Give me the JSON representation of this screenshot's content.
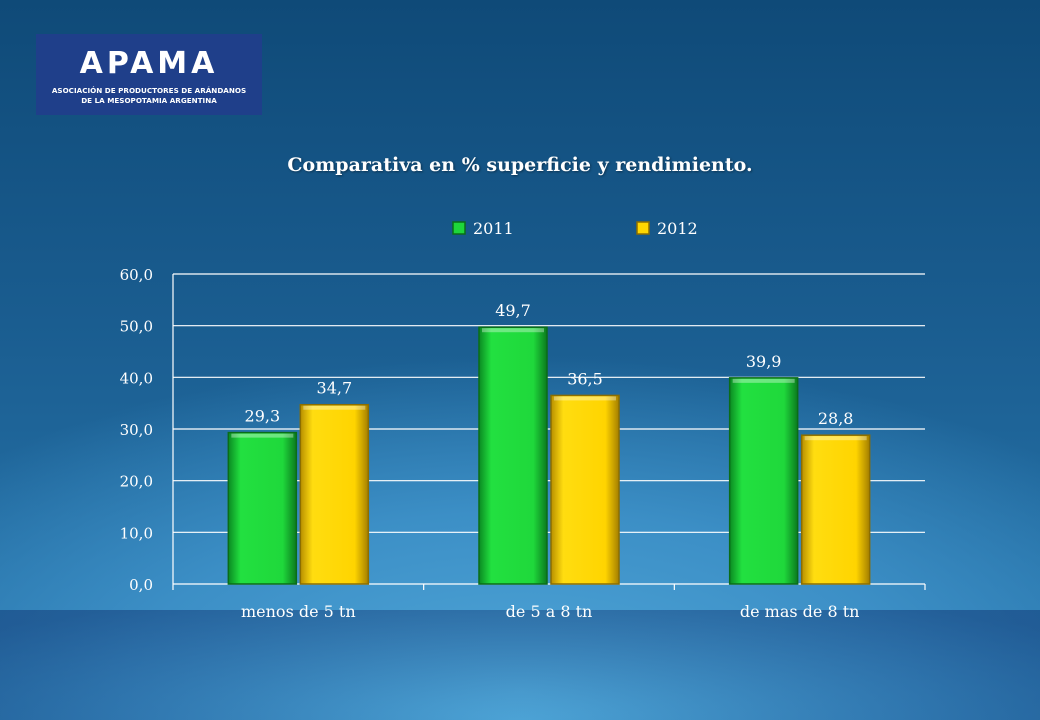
{
  "logo": {
    "name": "APAMA",
    "subtitle_line1": "ASOCIACIÓN DE PRODUCTORES DE ARÁNDANOS",
    "subtitle_line2": "DE LA MESOPOTAMIA ARGENTINA"
  },
  "chart_data": {
    "type": "bar",
    "title": "Comparativa en % superficie y rendimiento.",
    "categories": [
      "menos de 5 tn",
      "de 5 a 8 tn",
      "de mas de 8 tn"
    ],
    "series": [
      {
        "name": "2011",
        "values": [
          29.3,
          49.7,
          39.9
        ],
        "labels": [
          "29,3",
          "49,7",
          "39,9"
        ],
        "color": "#1ed63a"
      },
      {
        "name": "2012",
        "values": [
          34.7,
          36.5,
          28.8
        ],
        "labels": [
          "34,7",
          "36,5",
          "28,8"
        ],
        "color": "#ffd700"
      }
    ],
    "yticks": [
      "0,0",
      "10,0",
      "20,0",
      "30,0",
      "40,0",
      "50,0",
      "60,0"
    ],
    "ylim": [
      0,
      60
    ],
    "xlabel": "",
    "ylabel": "",
    "grid": true,
    "legend": "top-center"
  }
}
